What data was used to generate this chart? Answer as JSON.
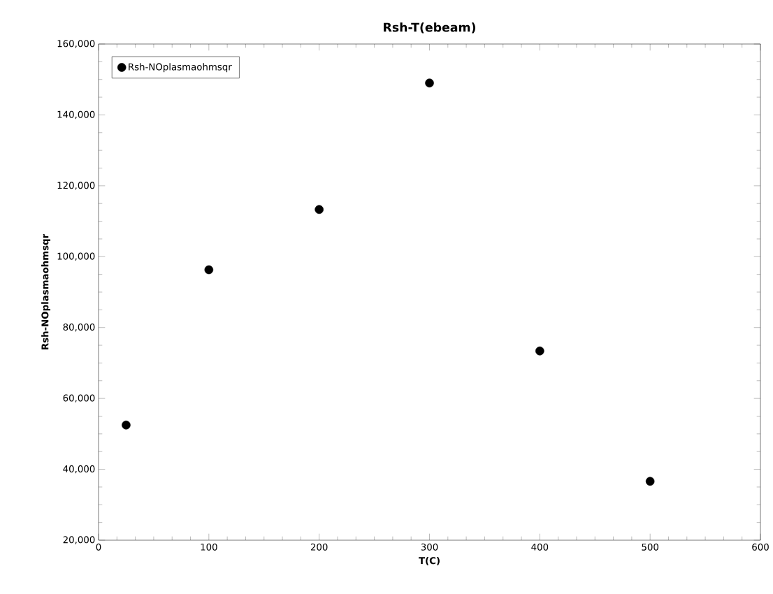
{
  "chart_data": {
    "type": "scatter",
    "title": "Rsh-T(ebeam)",
    "xlabel": "T(C)",
    "ylabel": "Rsh-NOplasmaohmsqr",
    "series": [
      {
        "name": "Rsh-NOplasmaohmsqr",
        "color": "#000000",
        "x": [
          25,
          100,
          200,
          300,
          400,
          500
        ],
        "values": [
          52500,
          96300,
          113300,
          149000,
          73400,
          36600
        ]
      }
    ],
    "xlim": [
      0,
      600
    ],
    "xticks": [
      0,
      100,
      200,
      300,
      400,
      500,
      600
    ],
    "ylim": [
      20000,
      160000
    ],
    "yticks": [
      {
        "value": 20000,
        "label": "20,000"
      },
      {
        "value": 40000,
        "label": "40,000"
      },
      {
        "value": 60000,
        "label": "60,000"
      },
      {
        "value": 80000,
        "label": "80,000"
      },
      {
        "value": 100000,
        "label": "100,000"
      },
      {
        "value": 120000,
        "label": "120,000"
      },
      {
        "value": 140000,
        "label": "140,000"
      },
      {
        "value": 160000,
        "label": "160,000"
      }
    ],
    "legend": "top left",
    "marker": "circle"
  }
}
